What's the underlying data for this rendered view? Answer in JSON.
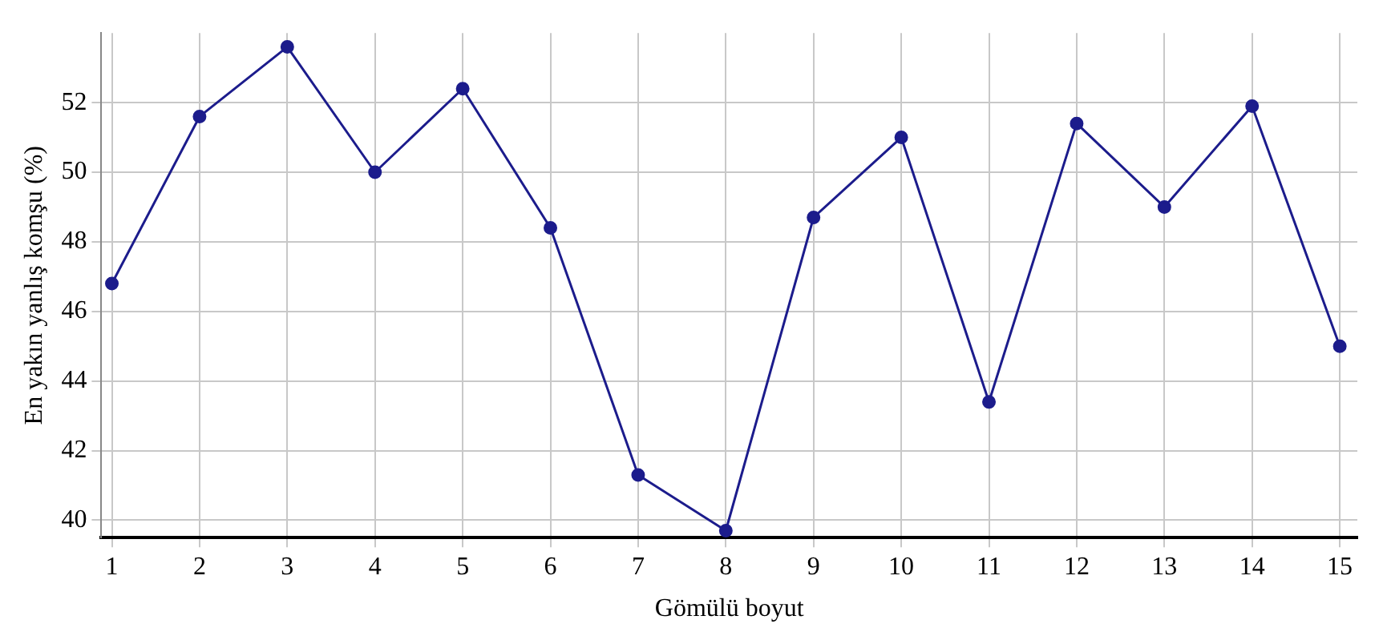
{
  "chart_data": {
    "type": "line",
    "xlabel": "Gömülü boyut",
    "ylabel": "En yakın yanlış komşu (%)",
    "x": [
      1,
      2,
      3,
      4,
      5,
      6,
      7,
      8,
      9,
      10,
      11,
      12,
      13,
      14,
      15
    ],
    "series": [
      {
        "color": "#1c1c8c",
        "values": [
          46.8,
          51.6,
          53.6,
          50.0,
          52.4,
          48.4,
          41.3,
          39.7,
          48.7,
          51.0,
          43.4,
          51.4,
          49.0,
          51.9,
          45.0
        ]
      }
    ],
    "xlim": [
      0.88,
      15.2
    ],
    "xticks": [
      1,
      2,
      3,
      4,
      5,
      6,
      7,
      8,
      9,
      10,
      11,
      12,
      13,
      14,
      15
    ],
    "ylim": [
      39.5,
      54
    ],
    "yticks": [
      40,
      42,
      44,
      46,
      48,
      50,
      52
    ],
    "grid": true,
    "legend": false,
    "marker": "circle",
    "line_style": "solid"
  }
}
